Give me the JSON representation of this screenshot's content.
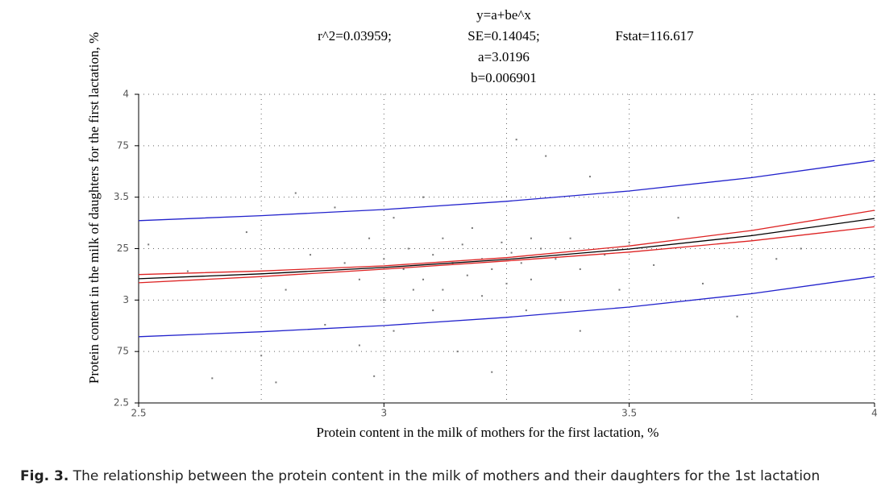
{
  "chart_data": {
    "type": "scatter",
    "equation": "y=a+be^x",
    "stats": {
      "r2": "r^2=0.03959;",
      "se": "SE=0.14045;",
      "fstat": "Fstat=116.617",
      "a": "a=3.0196",
      "b": "b=0.006901"
    },
    "xlabel": "Protein content in the milk of mothers for the first lactation, %",
    "ylabel": "Protein content in the milk of daughters for the first lactation, %",
    "caption": {
      "label": "Fig. 3.",
      "text": " The relationship between the protein content in the milk of mothers and their daughters for the 1st lactation"
    },
    "xlim": [
      2.5,
      4
    ],
    "ylim": [
      2.5,
      4
    ],
    "xticks": [
      2.5,
      3,
      3.5,
      4
    ],
    "xgrid_minor": [
      2.75,
      3.25,
      3.75
    ],
    "yticks": [
      {
        "value": 2.5,
        "label": "2.5"
      },
      {
        "value": 2.75,
        "label": "75"
      },
      3,
      {
        "value": 3.25,
        "label": "25"
      },
      3.5,
      {
        "value": 3.75,
        "label": "75"
      },
      4
    ],
    "grid": true,
    "points": {
      "color": "#777",
      "x": [
        2.52,
        2.6,
        2.65,
        2.72,
        2.75,
        2.78,
        2.8,
        2.82,
        2.85,
        2.88,
        2.9,
        2.92,
        2.95,
        2.95,
        2.97,
        2.98,
        3.0,
        3.0,
        3.02,
        3.02,
        3.04,
        3.05,
        3.06,
        3.08,
        3.08,
        3.1,
        3.1,
        3.12,
        3.12,
        3.14,
        3.15,
        3.16,
        3.17,
        3.18,
        3.2,
        3.2,
        3.22,
        3.22,
        3.24,
        3.25,
        3.26,
        3.27,
        3.28,
        3.29,
        3.3,
        3.3,
        3.32,
        3.33,
        3.35,
        3.36,
        3.38,
        3.4,
        3.4,
        3.42,
        3.45,
        3.48,
        3.5,
        3.55,
        3.6,
        3.65,
        3.7,
        3.72,
        3.8,
        3.85
      ],
      "y": [
        3.27,
        3.14,
        2.62,
        3.33,
        2.73,
        2.6,
        3.05,
        3.52,
        3.22,
        2.88,
        3.45,
        3.18,
        3.1,
        2.78,
        3.3,
        2.63,
        3.2,
        3.0,
        3.4,
        2.85,
        3.15,
        3.25,
        3.05,
        3.5,
        3.1,
        3.22,
        2.95,
        3.3,
        3.05,
        3.18,
        2.75,
        3.27,
        3.12,
        3.35,
        3.2,
        3.02,
        3.15,
        2.65,
        3.28,
        3.08,
        3.23,
        3.78,
        3.18,
        2.95,
        3.3,
        3.1,
        3.25,
        3.7,
        3.2,
        3.0,
        3.3,
        3.15,
        2.85,
        3.6,
        3.22,
        3.05,
        3.28,
        3.17,
        3.4,
        3.08,
        3.3,
        2.92,
        3.2,
        3.25
      ]
    },
    "curves": {
      "x": [
        2.5,
        2.75,
        3,
        3.25,
        3.5,
        3.75,
        4
      ],
      "series": [
        {
          "color": "#2222cc",
          "values": [
            3.386,
            3.41,
            3.44,
            3.48,
            3.53,
            3.595,
            3.678
          ]
        },
        {
          "color": "#2222cc",
          "values": [
            2.822,
            2.846,
            2.876,
            2.916,
            2.966,
            3.031,
            3.114
          ]
        },
        {
          "color": "#dd2222",
          "values": [
            3.124,
            3.141,
            3.166,
            3.206,
            3.263,
            3.338,
            3.436
          ]
        },
        {
          "color": "#dd2222",
          "values": [
            3.084,
            3.114,
            3.15,
            3.19,
            3.233,
            3.288,
            3.356
          ]
        },
        {
          "color": "#000000",
          "values": [
            3.1037,
            3.1275,
            3.1582,
            3.1976,
            3.2481,
            3.313,
            3.3964
          ]
        }
      ]
    }
  }
}
